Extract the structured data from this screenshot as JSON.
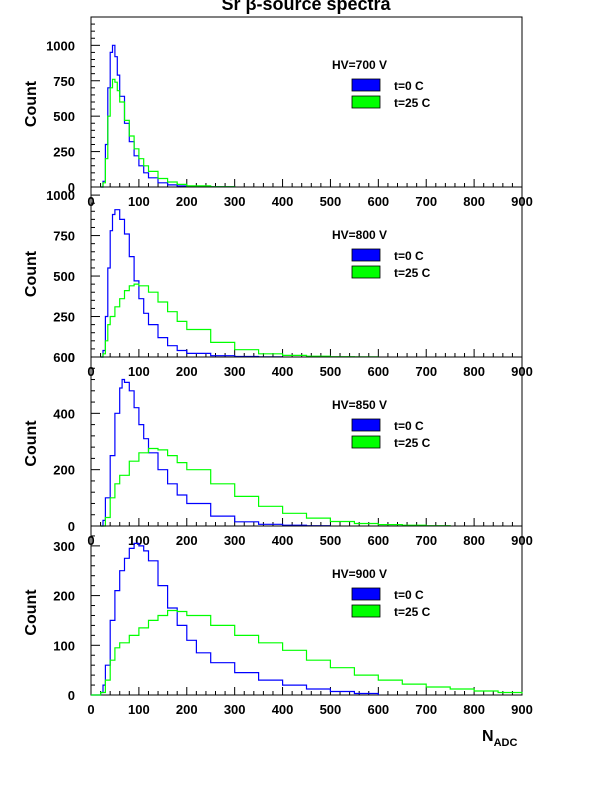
{
  "figure": {
    "title": "Sr β-source spectra",
    "xlabel_main": "N",
    "xlabel_sub": "ADC"
  },
  "colors": {
    "t0": "#0000ff",
    "t25": "#00ff00",
    "axis": "#000000"
  },
  "chart_data": [
    {
      "type": "line",
      "hv_label": "HV=700 V",
      "ylabel": "Count",
      "xlim": [
        0,
        900
      ],
      "ylim": [
        0,
        1200
      ],
      "x_ticks": [
        0,
        100,
        200,
        300,
        400,
        500,
        600,
        700,
        800,
        900
      ],
      "y_ticks": [
        0,
        250,
        500,
        750,
        1000
      ],
      "series": [
        {
          "name": "t=0 C",
          "color": "#0000ff",
          "x": [
            20,
            25,
            30,
            35,
            40,
            45,
            50,
            55,
            60,
            70,
            80,
            90,
            100,
            110,
            120,
            140,
            160,
            180,
            200,
            250,
            300
          ],
          "y": [
            0,
            40,
            300,
            700,
            950,
            1000,
            920,
            790,
            640,
            450,
            320,
            220,
            150,
            100,
            65,
            30,
            15,
            7,
            3,
            1,
            0
          ]
        },
        {
          "name": "t=25 C",
          "color": "#00ff00",
          "x": [
            20,
            25,
            30,
            35,
            40,
            45,
            50,
            55,
            60,
            70,
            80,
            90,
            100,
            110,
            120,
            140,
            160,
            180,
            200,
            250,
            300
          ],
          "y": [
            0,
            30,
            200,
            500,
            700,
            760,
            740,
            680,
            600,
            470,
            360,
            270,
            200,
            150,
            110,
            60,
            35,
            18,
            8,
            2,
            0
          ]
        }
      ]
    },
    {
      "type": "line",
      "hv_label": "HV=800 V",
      "ylabel": "Count",
      "xlim": [
        0,
        900
      ],
      "ylim": [
        0,
        1050
      ],
      "x_ticks": [
        0,
        100,
        200,
        300,
        400,
        500,
        600,
        700,
        800,
        900
      ],
      "y_ticks": [
        0,
        250,
        500,
        750,
        1000
      ],
      "series": [
        {
          "name": "t=0 C",
          "color": "#0000ff",
          "x": [
            20,
            25,
            30,
            35,
            40,
            45,
            50,
            60,
            70,
            80,
            90,
            100,
            110,
            120,
            140,
            160,
            180,
            200,
            250,
            300,
            350,
            400
          ],
          "y": [
            0,
            40,
            250,
            550,
            780,
            880,
            910,
            850,
            760,
            620,
            470,
            360,
            270,
            200,
            120,
            70,
            40,
            22,
            8,
            3,
            1,
            0
          ]
        },
        {
          "name": "t=25 C",
          "color": "#00ff00",
          "x": [
            20,
            25,
            30,
            35,
            40,
            50,
            60,
            70,
            80,
            90,
            100,
            120,
            140,
            160,
            180,
            200,
            250,
            300,
            350,
            400,
            450,
            500,
            550,
            600
          ],
          "y": [
            0,
            20,
            100,
            200,
            250,
            310,
            360,
            410,
            440,
            450,
            440,
            400,
            340,
            280,
            220,
            170,
            90,
            45,
            20,
            10,
            5,
            2,
            1,
            0
          ]
        }
      ]
    },
    {
      "type": "line",
      "hv_label": "HV=850 V",
      "ylabel": "Count",
      "xlim": [
        0,
        900
      ],
      "ylim": [
        0,
        600
      ],
      "x_ticks": [
        0,
        100,
        200,
        300,
        400,
        500,
        600,
        700,
        800,
        900
      ],
      "y_ticks": [
        0,
        200,
        400,
        600
      ],
      "series": [
        {
          "name": "t=0 C",
          "color": "#0000ff",
          "x": [
            20,
            25,
            30,
            40,
            50,
            60,
            65,
            70,
            80,
            90,
            100,
            110,
            120,
            140,
            160,
            180,
            200,
            250,
            300,
            350,
            400,
            450,
            500
          ],
          "y": [
            0,
            20,
            100,
            250,
            400,
            490,
            520,
            510,
            480,
            420,
            360,
            310,
            260,
            200,
            150,
            110,
            80,
            35,
            15,
            6,
            3,
            1,
            0
          ]
        },
        {
          "name": "t=25 C",
          "color": "#00ff00",
          "x": [
            20,
            30,
            40,
            50,
            60,
            80,
            100,
            120,
            140,
            160,
            180,
            200,
            250,
            300,
            350,
            400,
            450,
            500,
            550,
            600,
            650,
            700,
            750
          ],
          "y": [
            0,
            30,
            100,
            150,
            180,
            230,
            260,
            275,
            270,
            250,
            225,
            200,
            150,
            105,
            70,
            45,
            28,
            16,
            9,
            5,
            3,
            1,
            0
          ]
        }
      ]
    },
    {
      "type": "line",
      "hv_label": "HV=900 V",
      "ylabel": "Count",
      "xlim": [
        0,
        900
      ],
      "ylim": [
        0,
        340
      ],
      "x_ticks": [
        0,
        100,
        200,
        300,
        400,
        500,
        600,
        700,
        800,
        900
      ],
      "y_ticks": [
        0,
        100,
        200,
        300
      ],
      "series": [
        {
          "name": "t=0 C",
          "color": "#0000ff",
          "x": [
            0,
            20,
            25,
            30,
            40,
            50,
            60,
            70,
            80,
            90,
            100,
            110,
            120,
            140,
            160,
            180,
            200,
            220,
            250,
            300,
            350,
            400,
            450,
            500,
            550,
            600
          ],
          "y": [
            0,
            5,
            20,
            60,
            150,
            210,
            250,
            275,
            295,
            305,
            300,
            290,
            270,
            220,
            175,
            140,
            110,
            85,
            65,
            45,
            30,
            20,
            12,
            7,
            3,
            0
          ]
        },
        {
          "name": "t=25 C",
          "color": "#00ff00",
          "x": [
            0,
            20,
            30,
            40,
            50,
            60,
            80,
            100,
            120,
            140,
            160,
            180,
            200,
            250,
            300,
            350,
            400,
            450,
            500,
            550,
            600,
            650,
            700,
            750,
            800,
            850,
            900
          ],
          "y": [
            0,
            5,
            30,
            70,
            95,
            105,
            120,
            135,
            150,
            160,
            170,
            168,
            160,
            140,
            120,
            105,
            90,
            70,
            55,
            40,
            30,
            22,
            16,
            12,
            8,
            5,
            3
          ]
        }
      ]
    }
  ]
}
